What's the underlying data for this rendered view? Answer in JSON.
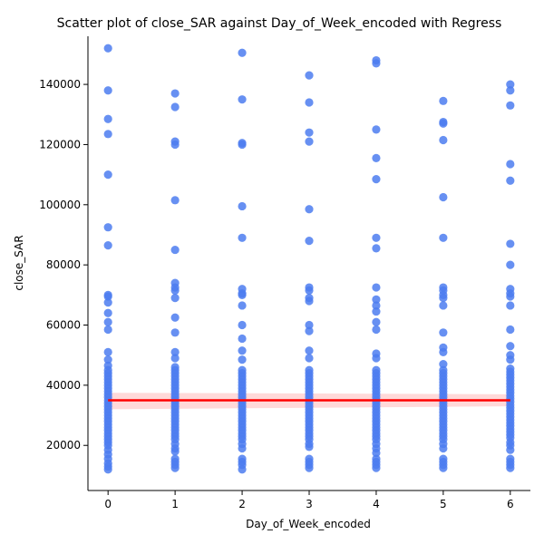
{
  "chart_data": {
    "type": "scatter",
    "title": "Scatter plot of close_SAR against Day_of_Week_encoded with Regress",
    "xlabel": "Day_of_Week_encoded",
    "ylabel": "close_SAR",
    "xlim": [
      -0.3,
      6.3
    ],
    "ylim": [
      5000,
      156000
    ],
    "xticks": [
      0,
      1,
      2,
      3,
      4,
      5,
      6
    ],
    "yticks": [
      20000,
      40000,
      60000,
      80000,
      100000,
      120000,
      140000
    ],
    "ytick_labels": [
      "20000",
      "40000",
      "60000",
      "80000",
      "100000",
      "120000",
      "140000"
    ],
    "grid": false,
    "point_color": "#4c7cf0",
    "line_color": "#ff0000",
    "band_color": "#ff0000",
    "regression": {
      "x": [
        0,
        6
      ],
      "y": [
        35000,
        35000
      ],
      "ci_low": [
        32000,
        33000
      ],
      "ci_high": [
        37500,
        37000
      ]
    },
    "series": [
      {
        "x": 0,
        "values": [
          152000,
          138000,
          128500,
          123500,
          110000,
          92500,
          86500,
          70000,
          69500,
          67500,
          64000,
          61000,
          58500,
          51000,
          48500,
          46500,
          45000,
          44000,
          43000,
          42000,
          41000,
          40000,
          39000,
          38000,
          37000,
          36000,
          35000,
          34000,
          33000,
          32000,
          31000,
          30000,
          29000,
          28000,
          27000,
          26000,
          25000,
          24000,
          23000,
          22000,
          21000,
          20000,
          18500,
          17000,
          15500,
          14000,
          13000,
          12000
        ]
      },
      {
        "x": 1,
        "values": [
          137000,
          132500,
          121000,
          120000,
          101500,
          85000,
          74000,
          72500,
          71500,
          69000,
          62500,
          57500,
          51000,
          49000,
          46000,
          45000,
          44000,
          43000,
          42000,
          41000,
          40000,
          39000,
          38000,
          37000,
          36000,
          35000,
          34000,
          33000,
          32000,
          31000,
          30000,
          29000,
          28000,
          27000,
          26000,
          25000,
          24000,
          23000,
          22000,
          20500,
          19000,
          18000,
          15500,
          14500,
          13500,
          12500
        ]
      },
      {
        "x": 2,
        "values": [
          150500,
          135000,
          120500,
          120000,
          99500,
          89000,
          72000,
          70500,
          70000,
          66500,
          60000,
          55500,
          51500,
          48500,
          45000,
          44000,
          43000,
          42000,
          41000,
          40000,
          39000,
          38000,
          37000,
          36000,
          35000,
          34000,
          33000,
          32000,
          31000,
          30000,
          29000,
          28000,
          27000,
          26000,
          25000,
          24000,
          23000,
          22000,
          20500,
          19000,
          15500,
          14500,
          13500,
          12000
        ]
      },
      {
        "x": 3,
        "values": [
          143000,
          134000,
          124000,
          121000,
          98500,
          88000,
          72500,
          71500,
          69000,
          68000,
          60000,
          58000,
          51500,
          49000,
          45000,
          44000,
          43000,
          42000,
          41000,
          40000,
          39000,
          38000,
          37000,
          36000,
          35000,
          34000,
          33000,
          32000,
          31000,
          30000,
          29000,
          28000,
          27000,
          26000,
          25000,
          24000,
          23000,
          22000,
          20500,
          19500,
          15500,
          14500,
          13500,
          12500
        ]
      },
      {
        "x": 4,
        "values": [
          148000,
          147000,
          125000,
          115500,
          108500,
          89000,
          85500,
          72500,
          68500,
          66500,
          64500,
          61000,
          58500,
          50500,
          49000,
          45000,
          44000,
          43000,
          42000,
          41000,
          40000,
          39000,
          38000,
          37000,
          36000,
          35000,
          34000,
          33000,
          32000,
          31000,
          30000,
          29000,
          28000,
          27000,
          26000,
          25000,
          24000,
          23000,
          22000,
          20500,
          19000,
          17500,
          15500,
          14500,
          13500,
          12500
        ]
      },
      {
        "x": 5,
        "values": [
          134500,
          127500,
          127000,
          121500,
          102500,
          89000,
          72500,
          71500,
          70000,
          69000,
          66500,
          57500,
          52500,
          51000,
          47000,
          45000,
          44000,
          43000,
          42000,
          41000,
          40000,
          39000,
          38000,
          37000,
          36000,
          35000,
          34000,
          33000,
          32000,
          31000,
          30000,
          29000,
          28000,
          27000,
          26000,
          25000,
          24000,
          23000,
          22000,
          20500,
          19000,
          15500,
          14500,
          13500,
          12500
        ]
      },
      {
        "x": 6,
        "values": [
          140000,
          138000,
          133000,
          113500,
          108000,
          87000,
          80000,
          72000,
          70500,
          69500,
          66500,
          58500,
          53000,
          50000,
          48500,
          45500,
          44500,
          43500,
          42500,
          41500,
          40500,
          39500,
          38500,
          37500,
          36500,
          35500,
          34500,
          33500,
          32500,
          31500,
          30500,
          29500,
          28500,
          27500,
          26500,
          25500,
          24500,
          23500,
          22500,
          21000,
          20000,
          18500,
          15500,
          14500,
          13500,
          12500
        ]
      }
    ]
  }
}
